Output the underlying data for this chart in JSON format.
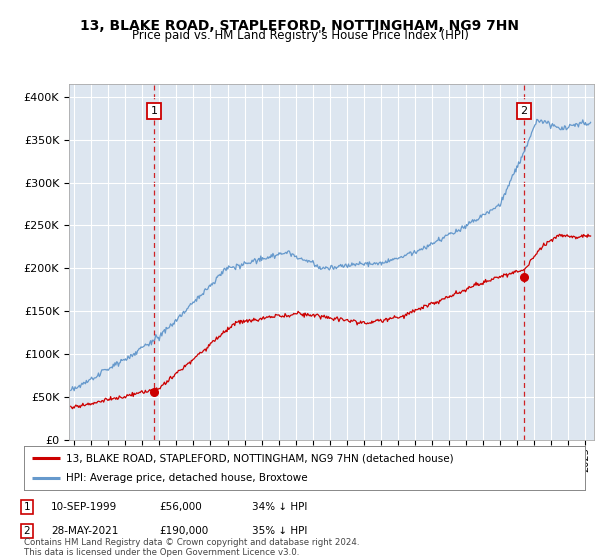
{
  "title": "13, BLAKE ROAD, STAPLEFORD, NOTTINGHAM, NG9 7HN",
  "subtitle": "Price paid vs. HM Land Registry's House Price Index (HPI)",
  "ylabel_ticks": [
    "£0",
    "£50K",
    "£100K",
    "£150K",
    "£200K",
    "£250K",
    "£300K",
    "£350K",
    "£400K"
  ],
  "ytick_values": [
    0,
    50000,
    100000,
    150000,
    200000,
    250000,
    300000,
    350000,
    400000
  ],
  "ylim": [
    0,
    415000
  ],
  "plot_bg": "#dde6f0",
  "red_color": "#cc0000",
  "blue_color": "#6699cc",
  "purchase1": {
    "date_num": 1999.69,
    "price": 56000,
    "label": "1",
    "date_str": "10-SEP-1999",
    "price_str": "£56,000",
    "note": "34% ↓ HPI"
  },
  "purchase2": {
    "date_num": 2021.4,
    "price": 190000,
    "label": "2",
    "date_str": "28-MAY-2021",
    "price_str": "£190,000",
    "note": "35% ↓ HPI"
  },
  "legend_label_red": "13, BLAKE ROAD, STAPLEFORD, NOTTINGHAM, NG9 7HN (detached house)",
  "legend_label_blue": "HPI: Average price, detached house, Broxtowe",
  "footer": "Contains HM Land Registry data © Crown copyright and database right 2024.\nThis data is licensed under the Open Government Licence v3.0.",
  "xmin": 1994.7,
  "xmax": 2025.5
}
